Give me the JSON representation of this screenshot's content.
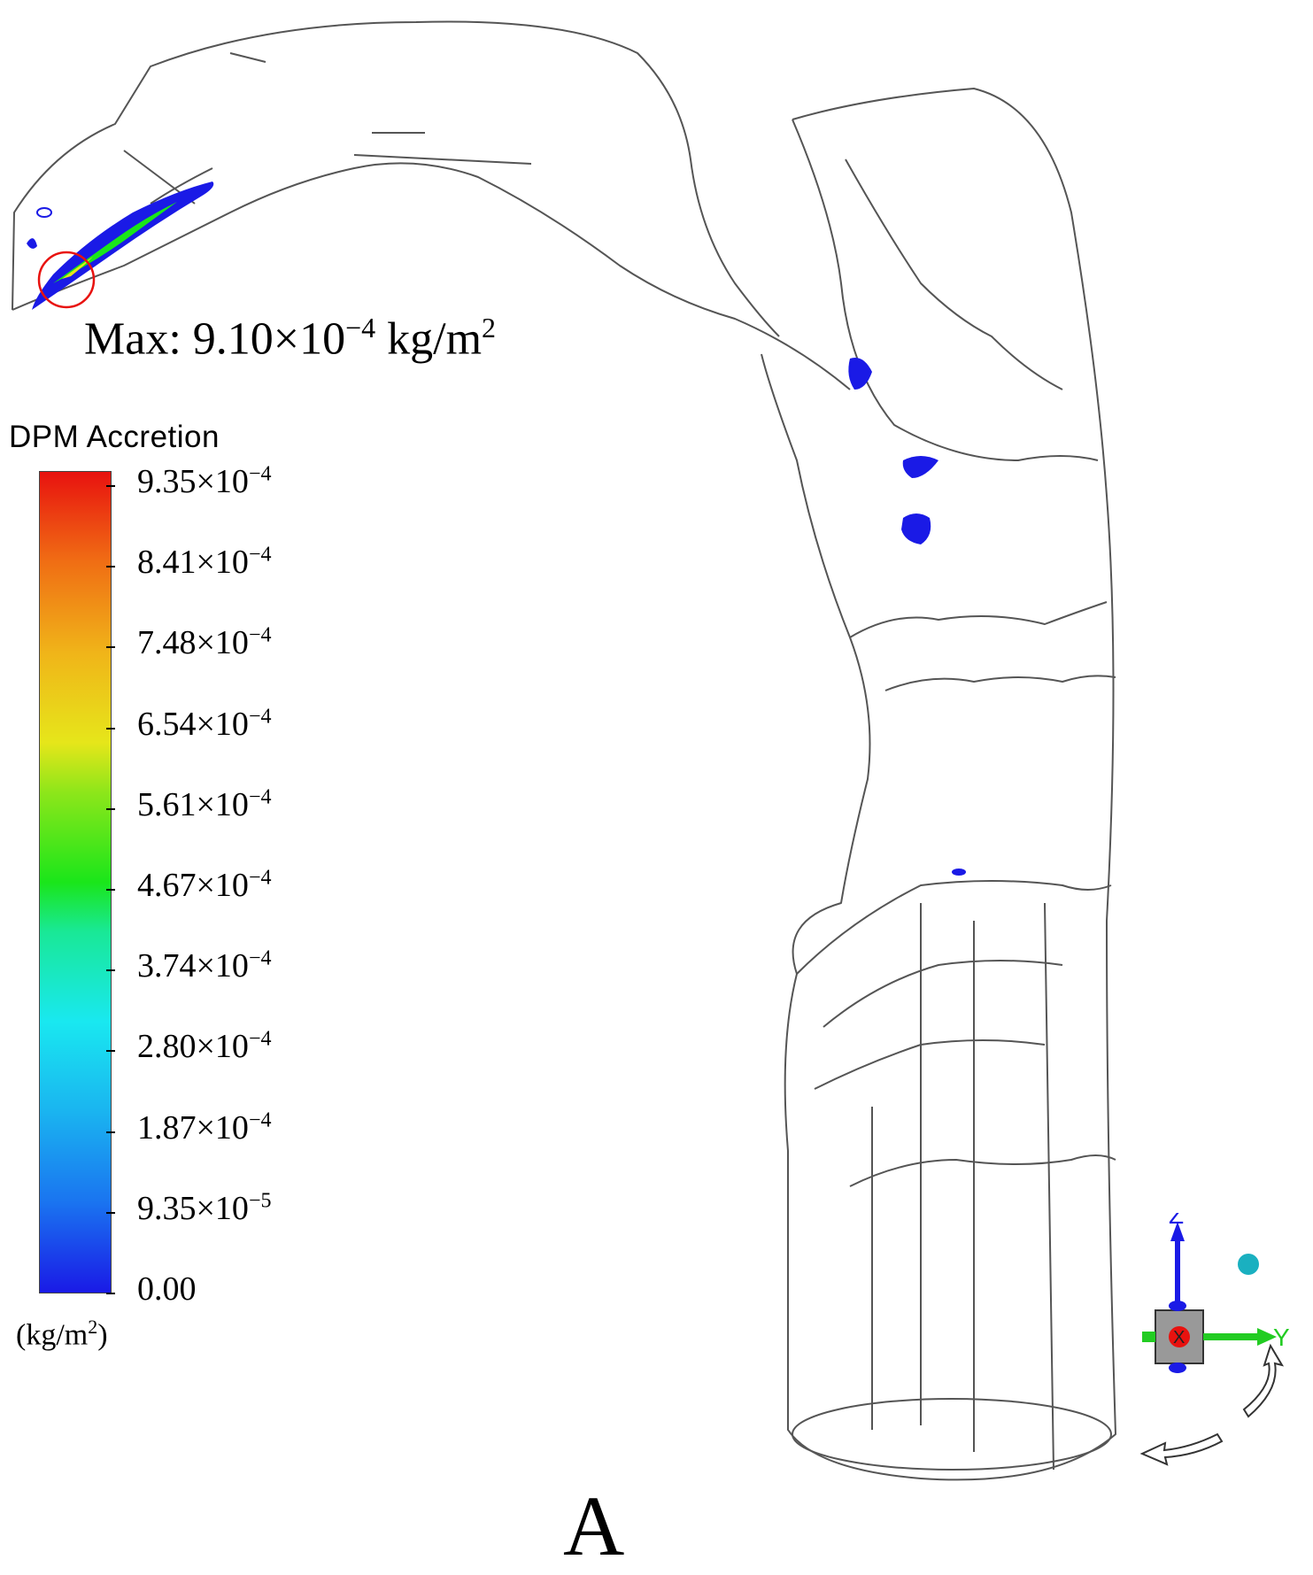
{
  "max_annotation": {
    "prefix": "Max: 9.10×10",
    "exponent": "−4",
    "unit_text": " kg/m",
    "unit_exp": "2"
  },
  "legend": {
    "title": "DPM Accretion",
    "ticks": [
      {
        "mantissa": "9.35×10",
        "exp": "−4"
      },
      {
        "mantissa": "8.41×10",
        "exp": "−4"
      },
      {
        "mantissa": "7.48×10",
        "exp": "−4"
      },
      {
        "mantissa": "6.54×10",
        "exp": "−4"
      },
      {
        "mantissa": "5.61×10",
        "exp": "−4"
      },
      {
        "mantissa": "4.67×10",
        "exp": "−4"
      },
      {
        "mantissa": "3.74×10",
        "exp": "−4"
      },
      {
        "mantissa": "2.80×10",
        "exp": "−4"
      },
      {
        "mantissa": "1.87×10",
        "exp": "−4"
      },
      {
        "mantissa": "9.35×10",
        "exp": "−5"
      },
      {
        "mantissa": "0.00",
        "exp": ""
      }
    ],
    "unit_text": "(kg/m",
    "unit_exp": "2",
    "unit_close": ")",
    "colors": [
      "#e8120f",
      "#f06e14",
      "#f0b419",
      "#e6e61a",
      "#1ae61a",
      "#19e8f0",
      "#1ab4f0",
      "#1a1ae6"
    ]
  },
  "axes_triad": {
    "z_label": "Z",
    "y_label": "Y",
    "x_label": "X",
    "colors": {
      "z": "#1a1ae6",
      "y": "#22cc22",
      "x": "#e8120f",
      "sphere": "#1ab0c0"
    }
  },
  "panel_label": "A"
}
